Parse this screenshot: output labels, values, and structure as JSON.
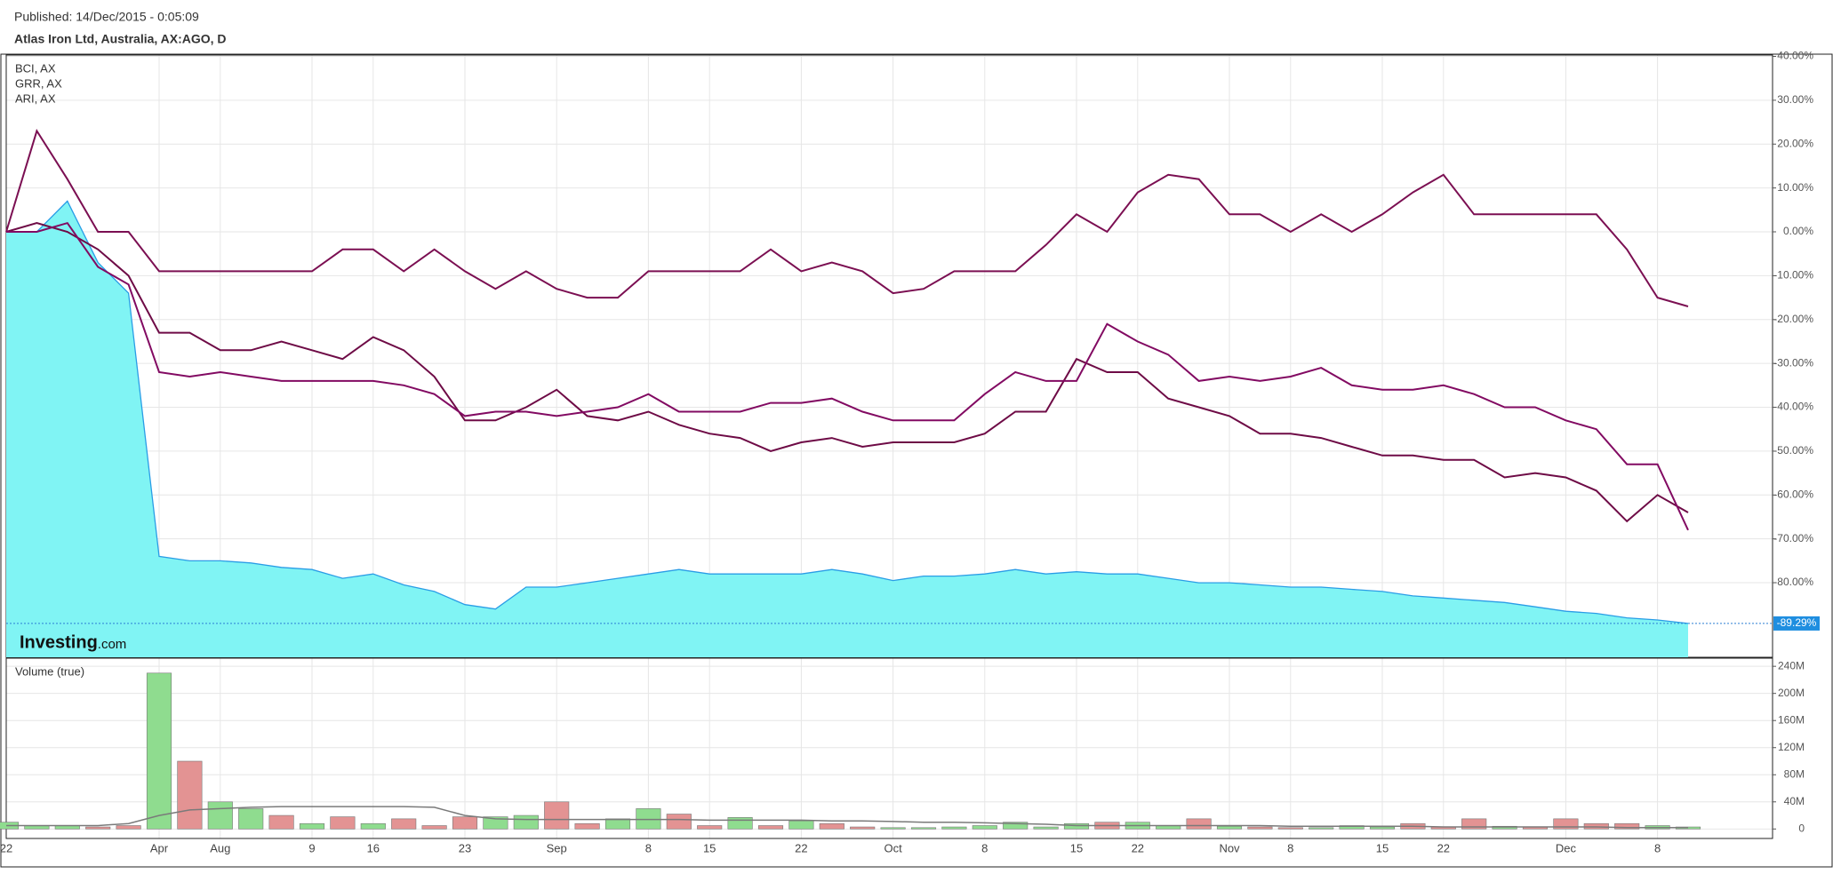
{
  "header": {
    "published": "Published: 14/Dec/2015 - 0:05:09"
  },
  "chart_data": [
    {
      "type": "line",
      "title": "Atlas Iron Ltd, Australia, AX:AGO, D",
      "categories": [
        "22",
        null,
        null,
        null,
        null,
        "Apr",
        null,
        "Aug",
        null,
        null,
        "9",
        null,
        "16",
        null,
        null,
        "23",
        null,
        null,
        "Sep",
        null,
        null,
        "8",
        null,
        "15",
        null,
        null,
        "22",
        null,
        null,
        "Oct",
        null,
        null,
        "8",
        null,
        null,
        "15",
        null,
        "22",
        null,
        null,
        "Nov",
        null,
        "8",
        null,
        null,
        "15",
        null,
        "22",
        null,
        null,
        null,
        "Dec",
        null,
        null,
        "8",
        null
      ],
      "values": [
        0,
        0,
        7,
        -7,
        -14,
        -74,
        -75,
        -75,
        -75.5,
        -76.5,
        -77,
        -79,
        -78,
        -80.5,
        -82,
        -85,
        -86,
        -81,
        -81,
        -80,
        -79,
        -78,
        -77,
        -78,
        -78,
        -78,
        -78,
        -77,
        -78,
        -79.5,
        -78.5,
        -78.5,
        -78,
        -77,
        -78,
        -77.5,
        -78,
        -78,
        -79,
        -80,
        -80,
        -80.5,
        -81,
        -81,
        -81.5,
        -82,
        -83,
        -83.5,
        -84,
        -84.5,
        -85.5,
        -86.5,
        -87,
        -88,
        -88.5,
        -89.29
      ],
      "color": "#2a9de6",
      "fill": "#80f4f4",
      "last_value": {
        "value": -89.29,
        "label": "-89.29%"
      },
      "series": [
        {
          "name": "BCI, AX",
          "color": "#7b0f52",
          "values": [
            0,
            23,
            12,
            0,
            0,
            -9,
            -9,
            -9,
            -9,
            -9,
            -9,
            -4,
            -4,
            -9,
            -4,
            -9,
            -13,
            -9,
            -13,
            -15,
            -15,
            -9,
            -9,
            -9,
            -9,
            -4,
            -9,
            -7,
            -9,
            -14,
            -13,
            -9,
            -9,
            -9,
            -3,
            4,
            0,
            9,
            13,
            12,
            4,
            4,
            0,
            4,
            0,
            4,
            9,
            13,
            4,
            4,
            4,
            4,
            4,
            -4,
            -15,
            -17
          ]
        },
        {
          "name": "GRR, AX",
          "color": "#6e0b46",
          "values": [
            0,
            2,
            0,
            -4,
            -10,
            -23,
            -23,
            -27,
            -27,
            -25,
            -27,
            -29,
            -24,
            -27,
            -33,
            -43,
            -43,
            -40,
            -36,
            -42,
            -43,
            -41,
            -44,
            -46,
            -47,
            -50,
            -48,
            -47,
            -49,
            -48,
            -48,
            -48,
            -46,
            -41,
            -41,
            -29,
            -32,
            -32,
            -38,
            -40,
            -42,
            -46,
            -46,
            -47,
            -49,
            -51,
            -51,
            -52,
            -52,
            -56,
            -55,
            -56,
            -59,
            -66,
            -60,
            -64
          ]
        },
        {
          "name": "ARI, AX",
          "color": "#820a62",
          "values": [
            0,
            0,
            2,
            -8,
            -12,
            -32,
            -33,
            -32,
            -33,
            -34,
            -34,
            -34,
            -34,
            -35,
            -37,
            -42,
            -41,
            -41,
            -42,
            -41,
            -40,
            -37,
            -41,
            -41,
            -41,
            -39,
            -39,
            -38,
            -41,
            -43,
            -43,
            -43,
            -37,
            -32,
            -34,
            -34,
            -21,
            -25,
            -28,
            -34,
            -33,
            -34,
            -33,
            -31,
            -35,
            -36,
            -36,
            -35,
            -37,
            -40,
            -40,
            -43,
            -45,
            -53,
            -53,
            -68
          ]
        }
      ],
      "ylim": [
        -97,
        40.3
      ],
      "yticks": [
        {
          "value": 40,
          "label": "40.00%"
        },
        {
          "value": 30,
          "label": "30.00%"
        },
        {
          "value": 20,
          "label": "20.00%"
        },
        {
          "value": 10,
          "label": "10.00%"
        },
        {
          "value": 0,
          "label": "0.00%"
        },
        {
          "value": -10,
          "label": "-10.00%"
        },
        {
          "value": -20,
          "label": "-20.00%"
        },
        {
          "value": -30,
          "label": "-30.00%"
        },
        {
          "value": -40,
          "label": "-40.00%"
        },
        {
          "value": -50,
          "label": "-50.00%"
        },
        {
          "value": -60,
          "label": "-60.00%"
        },
        {
          "value": -70,
          "label": "-70.00%"
        },
        {
          "value": -80,
          "label": "-80.00%"
        }
      ],
      "grid": true,
      "watermark": {
        "brand": "Investing",
        "suffix": ".com"
      }
    },
    {
      "type": "bar",
      "title": "Volume (true)",
      "values": [
        10,
        5,
        5,
        3,
        5,
        230,
        100,
        40,
        30,
        20,
        8,
        18,
        8,
        15,
        5,
        18,
        18,
        20,
        40,
        8,
        15,
        30,
        22,
        5,
        17,
        5,
        12,
        8,
        3,
        2,
        2,
        3,
        5,
        10,
        3,
        8,
        10,
        10,
        5,
        15,
        4,
        3,
        2,
        2,
        5,
        3,
        8,
        3,
        15,
        4,
        3,
        15,
        8,
        8,
        5,
        3
      ],
      "colors": [
        "#8fdc8f",
        "#8fdc8f",
        "#8fdc8f",
        "#e39393",
        "#e39393",
        "#8fdc8f",
        "#e39393",
        "#8fdc8f",
        "#8fdc8f",
        "#e39393",
        "#8fdc8f",
        "#e39393",
        "#8fdc8f",
        "#e39393",
        "#e39393",
        "#e39393",
        "#8fdc8f",
        "#8fdc8f",
        "#e39393",
        "#e39393",
        "#8fdc8f",
        "#8fdc8f",
        "#e39393",
        "#e39393",
        "#8fdc8f",
        "#e39393",
        "#8fdc8f",
        "#e39393",
        "#e39393",
        "#8fdc8f",
        "#8fdc8f",
        "#8fdc8f",
        "#8fdc8f",
        "#8fdc8f",
        "#8fdc8f",
        "#8fdc8f",
        "#e39393",
        "#8fdc8f",
        "#8fdc8f",
        "#e39393",
        "#8fdc8f",
        "#e39393",
        "#e39393",
        "#8fdc8f",
        "#8fdc8f",
        "#8fdc8f",
        "#e39393",
        "#e39393",
        "#e39393",
        "#8fdc8f",
        "#e39393",
        "#e39393",
        "#e39393",
        "#e39393",
        "#8fdc8f",
        "#8fdc8f"
      ],
      "ma_values": [
        5,
        5,
        5,
        5,
        8,
        20,
        28,
        30,
        32,
        33,
        33,
        33,
        33,
        33,
        32,
        20,
        15,
        14,
        14,
        14,
        14,
        14,
        14,
        13,
        13,
        13,
        13,
        12,
        12,
        11,
        10,
        10,
        9,
        8,
        7,
        5,
        5,
        5,
        5,
        5,
        5,
        5,
        4,
        4,
        4,
        4,
        4,
        3,
        3,
        3,
        3,
        3,
        3,
        2,
        2,
        2
      ],
      "ma_color": "#7a7a7a",
      "ylim": [
        -14,
        252
      ],
      "yticks": [
        0,
        {
          "value": 40,
          "label": "40M"
        },
        {
          "value": 80,
          "label": "80M"
        },
        {
          "value": 120,
          "label": "120M"
        },
        {
          "value": 160,
          "label": "160M"
        },
        {
          "value": 200,
          "label": "200M"
        },
        {
          "value": 240,
          "label": "240M"
        }
      ],
      "grid": true
    }
  ]
}
